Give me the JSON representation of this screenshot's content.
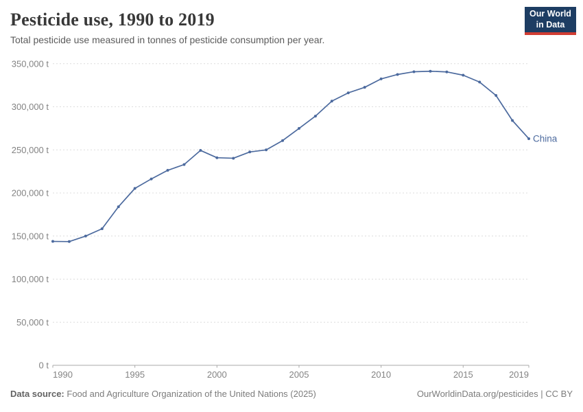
{
  "header": {
    "title": "Pesticide use, 1990 to 2019",
    "subtitle": "Total pesticide use measured in tonnes of pesticide consumption per year."
  },
  "logo": {
    "line1": "Our World",
    "line2": "in Data",
    "bg_color": "#1d3d63",
    "accent_color": "#d13d33"
  },
  "chart_data": {
    "type": "line",
    "title": "Pesticide use, 1990 to 2019",
    "xlabel": "",
    "ylabel": "",
    "unit": "t",
    "x": [
      1990,
      1991,
      1992,
      1993,
      1994,
      1995,
      1996,
      1997,
      1998,
      1999,
      2000,
      2001,
      2002,
      2003,
      2004,
      2005,
      2006,
      2007,
      2008,
      2009,
      2010,
      2011,
      2012,
      2013,
      2014,
      2015,
      2016,
      2017,
      2018,
      2019
    ],
    "series": [
      {
        "name": "China",
        "color": "#4c6a9e",
        "values": [
          143800,
          143600,
          150000,
          158500,
          184000,
          205300,
          216300,
          226300,
          233000,
          249400,
          240900,
          240300,
          247600,
          250000,
          260800,
          274900,
          289200,
          306600,
          316200,
          322600,
          332400,
          337500,
          340700,
          341300,
          340500,
          336700,
          328700,
          313200,
          284100,
          263000
        ]
      }
    ],
    "ylim": [
      0,
      350000
    ],
    "yticks": [
      0,
      50000,
      100000,
      150000,
      200000,
      250000,
      300000,
      350000
    ],
    "xticks": [
      1990,
      1995,
      2000,
      2005,
      2010,
      2015,
      2019
    ],
    "grid": "horizontal-dashed",
    "legend_position": "end-of-line-label",
    "marker": "dot"
  },
  "footer": {
    "source_label": "Data source:",
    "source_text": "Food and Agriculture Organization of the United Nations (2025)",
    "credit": "OurWorldinData.org/pesticides | CC BY"
  },
  "colors": {
    "series_blue": "#4c6a9e",
    "gridline": "#dcdcdc",
    "axis": "#a8a8a8",
    "tick_label": "#838383",
    "title_text": "#383838",
    "subtitle_text": "#5b5b5b"
  }
}
